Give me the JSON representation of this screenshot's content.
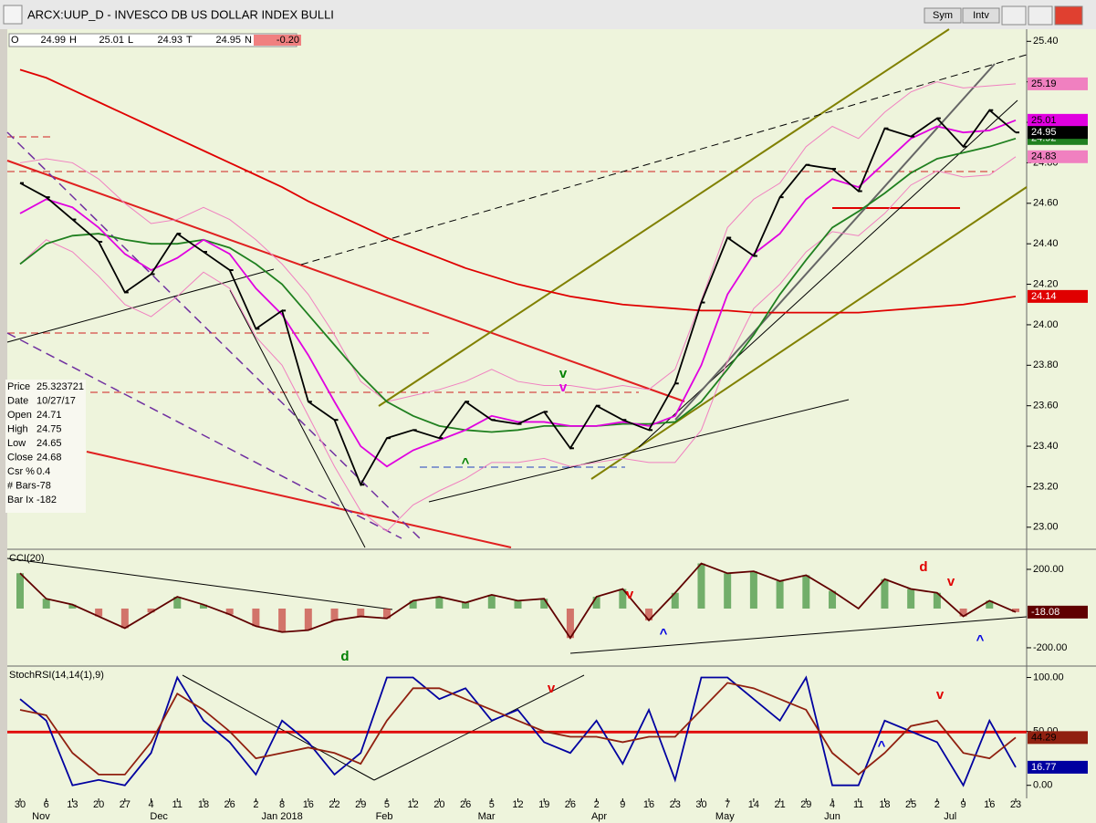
{
  "window": {
    "title": "ARCX:UUP_D - INVESCO DB US DOLLAR INDEX BULLI",
    "buttons": [
      "Sym",
      "Intv"
    ]
  },
  "quote": [
    {
      "key": "O",
      "text": "24.99"
    },
    {
      "key": "H",
      "text": "25.01"
    },
    {
      "key": "L",
      "text": "24.93"
    },
    {
      "key": "T",
      "text": "24.95"
    },
    {
      "key": "N",
      "text": "-0.20"
    }
  ],
  "info": [
    [
      "Price",
      "25.323721"
    ],
    [
      "Date",
      "10/27/17"
    ],
    [
      "Open",
      "24.71"
    ],
    [
      "High",
      "24.75"
    ],
    [
      "Low",
      "24.65"
    ],
    [
      "Close",
      "24.68"
    ],
    [
      "Csr %",
      "0.4"
    ],
    [
      "# Bars",
      "-78"
    ],
    [
      "Bar Ix",
      "-182"
    ]
  ],
  "chart_data": [
    {
      "type": "ohlc-line",
      "categories": [
        "30",
        "6",
        "13",
        "20",
        "27",
        "4",
        "11",
        "18",
        "26",
        "2",
        "8",
        "16",
        "22",
        "29",
        "5",
        "12",
        "20",
        "26",
        "5",
        "12",
        "19",
        "26",
        "2",
        "9",
        "16",
        "23",
        "30",
        "7",
        "14",
        "21",
        "29",
        "4",
        "11",
        "18",
        "25",
        "2",
        "9",
        "16",
        "23"
      ],
      "months": [
        "Nov",
        "Dec",
        "Jan 2018",
        "Feb",
        "Mar",
        "Apr",
        "May",
        "Jun",
        "Jul"
      ],
      "ylim": [
        22.9,
        25.46
      ],
      "yticks": [
        {
          "value": 23,
          "label": "23.00"
        },
        {
          "value": 23.2,
          "label": "23.20"
        },
        {
          "value": 23.4,
          "label": "23.40"
        },
        {
          "value": 23.6,
          "label": "23.60"
        },
        {
          "value": 23.8,
          "label": "23.80"
        },
        {
          "value": 24,
          "label": "24.00"
        },
        {
          "value": 24.2,
          "label": "24.20"
        },
        {
          "value": 24.4,
          "label": "24.40"
        },
        {
          "value": 24.6,
          "label": "24.60"
        },
        {
          "value": 24.8,
          "label": "24.80"
        },
        {
          "value": 25,
          "label": "25.00"
        },
        {
          "value": 25.2,
          "label": "25.20"
        },
        {
          "value": 25.4,
          "label": "25.40"
        }
      ],
      "series": [
        {
          "color": "#f080c0",
          "values": [
            24.8,
            24.82,
            24.8,
            24.72,
            24.6,
            24.5,
            24.52,
            24.58,
            24.52,
            24.42,
            24.3,
            24.15,
            23.95,
            23.72,
            23.62,
            23.65,
            23.68,
            23.72,
            23.78,
            23.72,
            23.7,
            23.7,
            23.68,
            23.7,
            23.68,
            23.78,
            24.12,
            24.48,
            24.62,
            24.7,
            24.88,
            24.98,
            24.92,
            25.05,
            25.15,
            25.2,
            25.17,
            25.18,
            25.19
          ]
        },
        {
          "color": "#f080c0",
          "values": [
            24.3,
            24.42,
            24.36,
            24.24,
            24.1,
            24.04,
            24.14,
            24.26,
            24.18,
            23.94,
            23.8,
            23.55,
            23.3,
            23.08,
            22.98,
            23.11,
            23.18,
            23.24,
            23.32,
            23.32,
            23.34,
            23.3,
            23.32,
            23.34,
            23.32,
            23.32,
            23.48,
            23.82,
            24.08,
            24.2,
            24.36,
            24.46,
            24.44,
            24.55,
            24.69,
            24.76,
            24.73,
            24.74,
            24.83
          ]
        },
        {
          "color": "#e00000",
          "values": [
            25.26,
            25.22,
            25.16,
            25.1,
            25.04,
            24.98,
            24.92,
            24.86,
            24.8,
            24.74,
            24.68,
            24.61,
            24.55,
            24.49,
            24.43,
            24.38,
            24.33,
            24.28,
            24.24,
            24.2,
            24.17,
            24.14,
            24.12,
            24.1,
            24.09,
            24.08,
            24.07,
            24.07,
            24.06,
            24.06,
            24.06,
            24.06,
            24.06,
            24.07,
            24.08,
            24.09,
            24.1,
            24.12,
            24.14
          ]
        },
        {
          "color": "#208020",
          "values": [
            24.3,
            24.4,
            24.44,
            24.45,
            24.42,
            24.4,
            24.4,
            24.42,
            24.38,
            24.3,
            24.2,
            24.05,
            23.9,
            23.75,
            23.62,
            23.55,
            23.5,
            23.48,
            23.47,
            23.48,
            23.5,
            23.5,
            23.5,
            23.51,
            23.51,
            23.52,
            23.62,
            23.78,
            23.95,
            24.15,
            24.32,
            24.48,
            24.56,
            24.65,
            24.75,
            24.82,
            24.85,
            24.88,
            24.92
          ]
        },
        {
          "color": "#e000e0",
          "values": [
            24.55,
            24.62,
            24.58,
            24.48,
            24.35,
            24.27,
            24.33,
            24.42,
            24.35,
            24.18,
            24.05,
            23.85,
            23.62,
            23.4,
            23.3,
            23.38,
            23.43,
            23.48,
            23.55,
            23.52,
            23.52,
            23.5,
            23.5,
            23.52,
            23.5,
            23.55,
            23.8,
            24.15,
            24.35,
            24.45,
            24.62,
            24.72,
            24.68,
            24.8,
            24.92,
            24.98,
            24.95,
            24.96,
            25.01
          ]
        },
        {
          "color": "#000000",
          "values": [
            24.7,
            24.63,
            24.52,
            24.41,
            24.16,
            24.25,
            24.45,
            24.36,
            24.27,
            23.98,
            24.07,
            23.62,
            23.53,
            23.21,
            23.44,
            23.48,
            23.44,
            23.62,
            23.53,
            23.51,
            23.57,
            23.39,
            23.6,
            23.53,
            23.48,
            23.71,
            24.11,
            24.43,
            24.34,
            24.63,
            24.79,
            24.77,
            24.66,
            24.97,
            24.93,
            25.02,
            24.88,
            25.06,
            24.95
          ]
        }
      ],
      "annotations": [
        {
          "text": "v",
          "color": "#008000"
        },
        {
          "text": "v",
          "color": "#e000e0"
        },
        {
          "text": "^",
          "color": "#008000"
        }
      ]
    },
    {
      "type": "histogram",
      "title": "CCI(20)",
      "ylim": [
        -284,
        293
      ],
      "yticks": [
        {
          "value": 200,
          "label": "200.00"
        },
        {
          "value": -200,
          "label": "-200.00"
        }
      ],
      "series": [
        {
          "color": "#600000",
          "values": [
            180,
            50,
            20,
            -40,
            -100,
            -20,
            60,
            20,
            -30,
            -90,
            -120,
            -110,
            -60,
            -40,
            -50,
            40,
            60,
            30,
            70,
            40,
            50,
            -150,
            60,
            100,
            -60,
            80,
            230,
            180,
            190,
            140,
            170,
            90,
            0,
            150,
            100,
            80,
            -40,
            40,
            -18.08
          ]
        }
      ],
      "annotations": [
        {
          "text": "d",
          "color": "#008000"
        },
        {
          "text": "v",
          "color": "#e00000"
        },
        {
          "text": "^",
          "color": "#0000e0"
        },
        {
          "text": "d",
          "color": "#e00000"
        },
        {
          "text": "v",
          "color": "#e00000"
        },
        {
          "text": "^",
          "color": "#0000e0"
        }
      ]
    },
    {
      "type": "line",
      "title": "StochRSI(14,14(1),9)",
      "ylim": [
        -12.1,
        108.9
      ],
      "reference": 50,
      "yticks": [
        {
          "value": 0,
          "label": "0.00"
        },
        {
          "value": 50,
          "label": "50.00"
        },
        {
          "value": 100,
          "label": "100.00"
        }
      ],
      "series": [
        {
          "color": "#0000a0",
          "values": [
            80,
            60,
            0,
            5,
            0,
            30,
            100,
            60,
            40,
            10,
            60,
            40,
            10,
            30,
            100,
            100,
            80,
            90,
            60,
            70,
            40,
            30,
            60,
            20,
            70,
            5,
            100,
            100,
            80,
            60,
            100,
            0,
            0,
            60,
            50,
            40,
            0,
            60,
            16.77
          ]
        },
        {
          "color": "#902010",
          "values": [
            70,
            65,
            30,
            10,
            10,
            40,
            85,
            70,
            50,
            25,
            30,
            35,
            30,
            20,
            60,
            90,
            90,
            80,
            70,
            60,
            50,
            45,
            45,
            40,
            45,
            45,
            70,
            95,
            90,
            80,
            70,
            30,
            10,
            30,
            55,
            60,
            30,
            25,
            44.29
          ]
        }
      ],
      "annotations": [
        {
          "text": "v",
          "color": "#e00000"
        },
        {
          "text": "^",
          "color": "#0000e0"
        },
        {
          "text": "v",
          "color": "#e00000"
        }
      ]
    }
  ]
}
